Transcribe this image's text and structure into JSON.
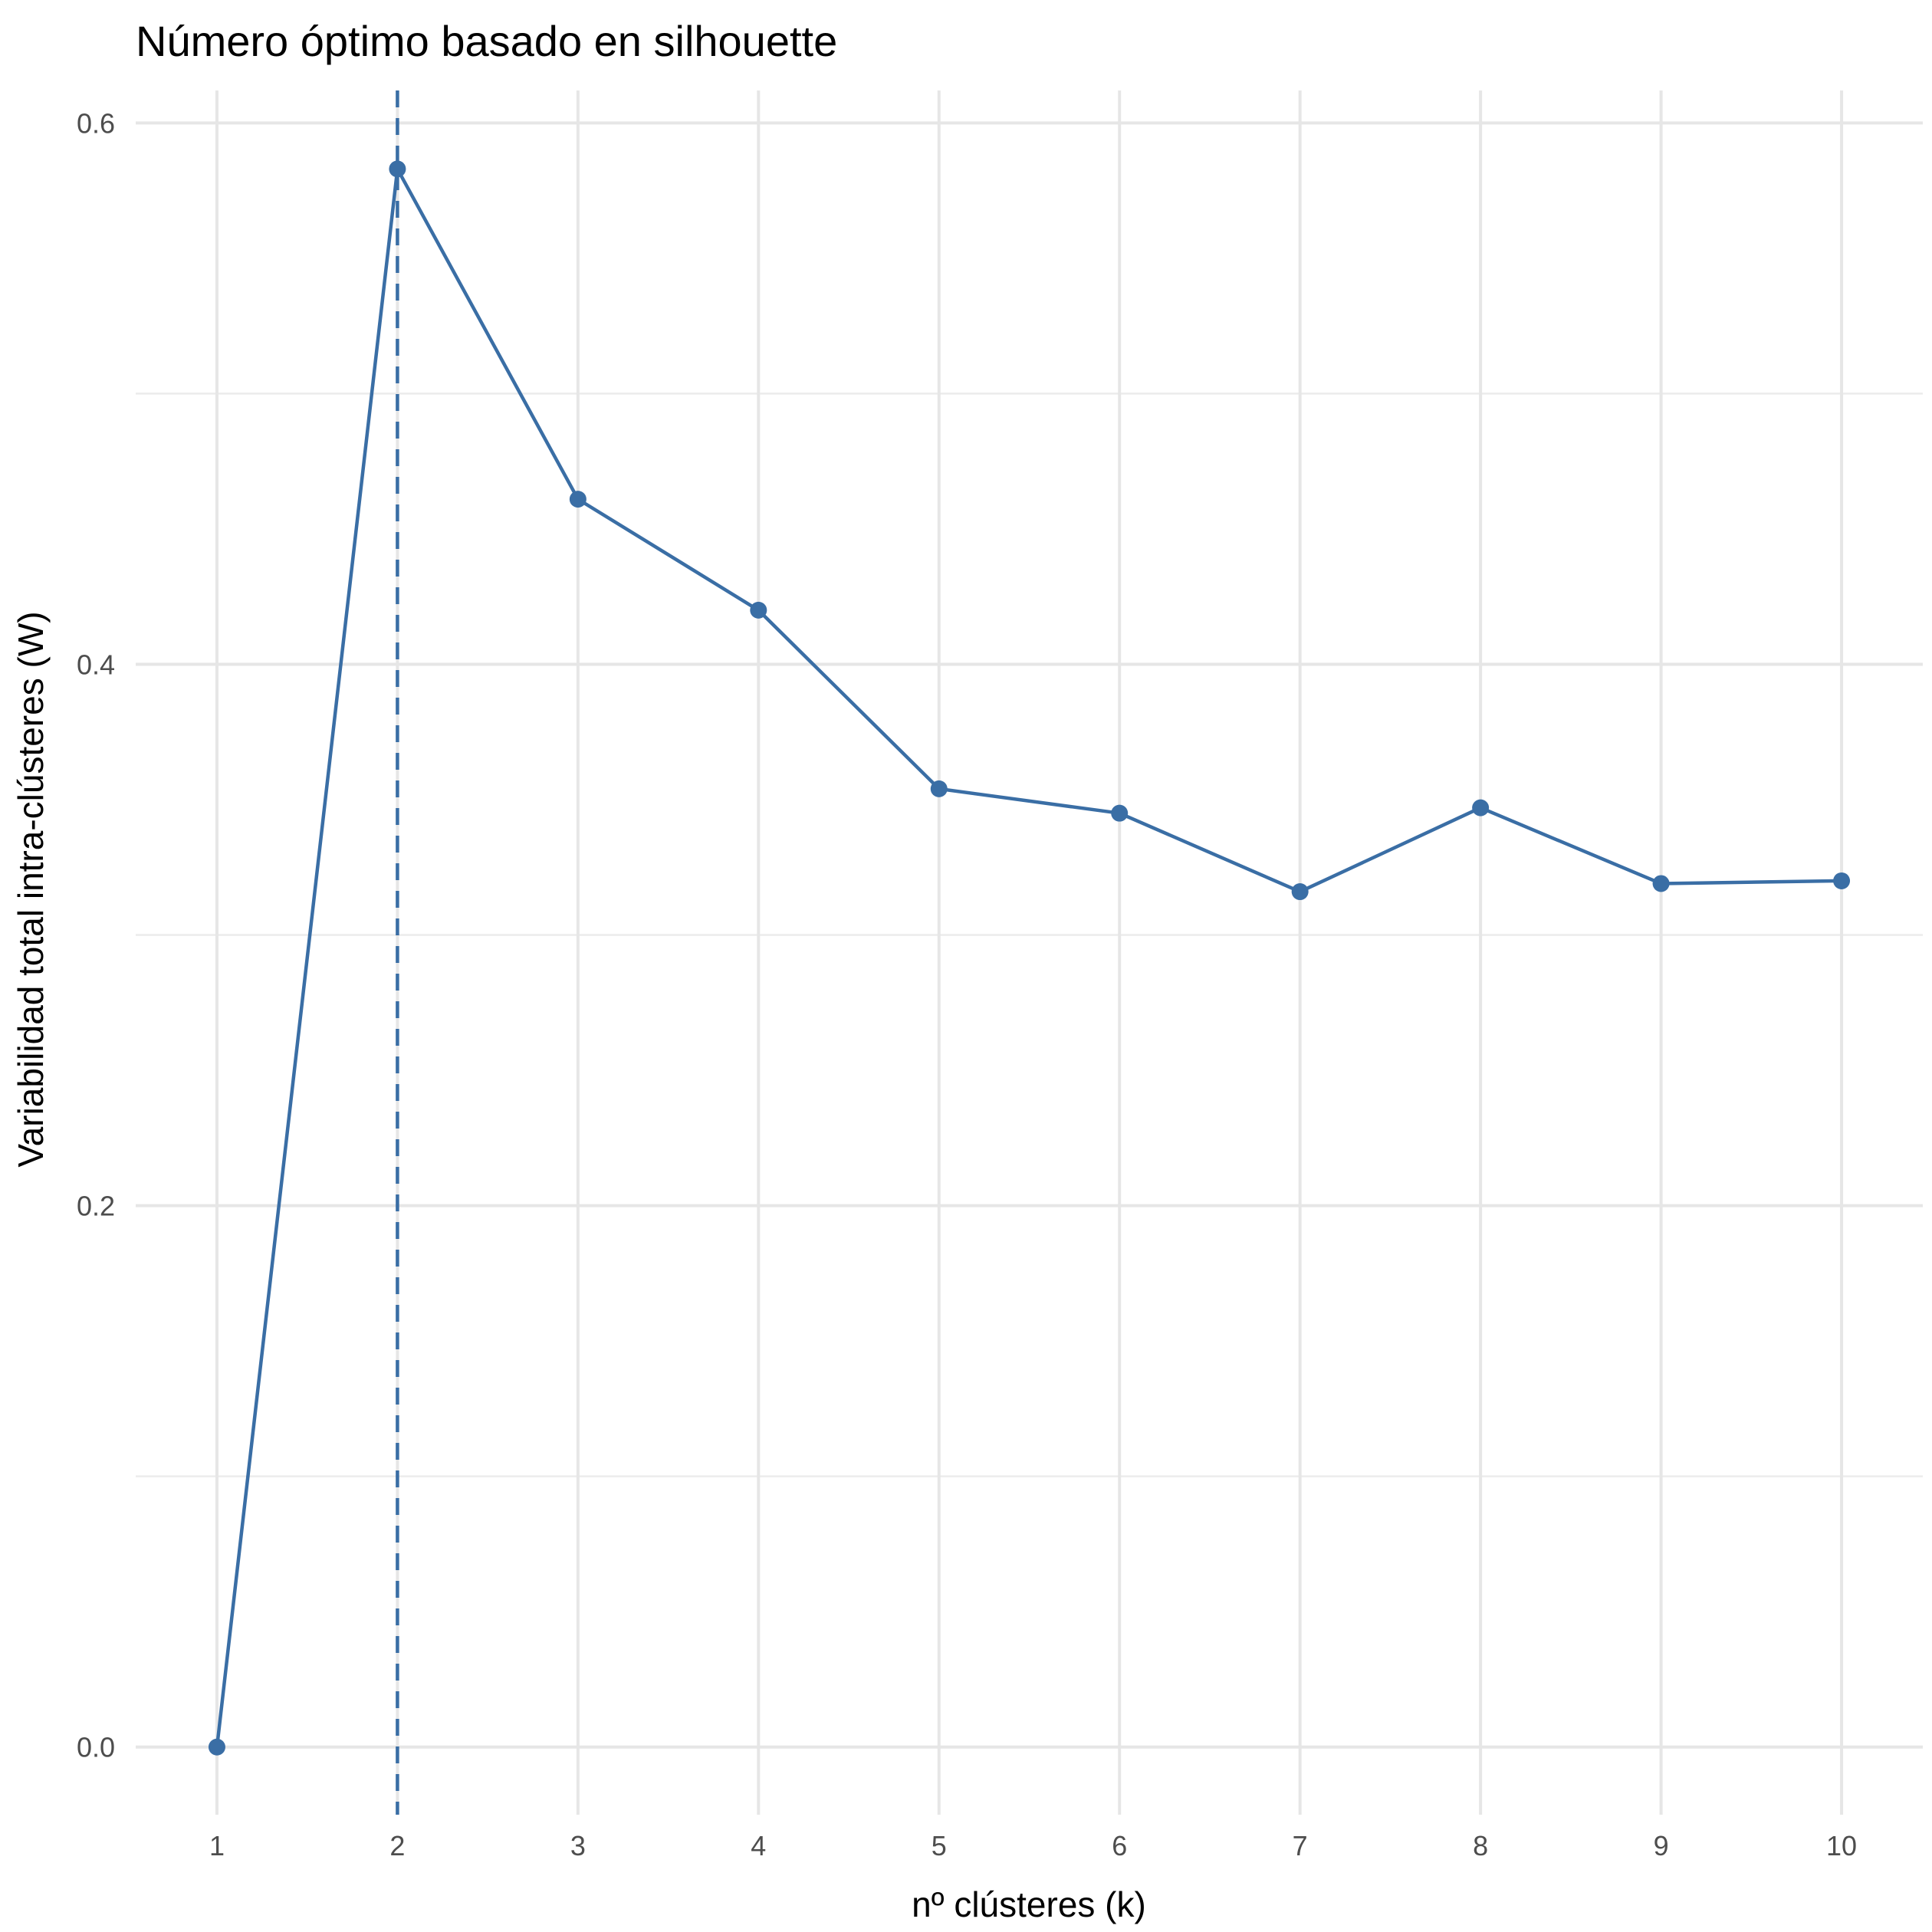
{
  "chart_data": {
    "type": "line",
    "title": "Número óptimo basado en silhouette",
    "xlabel": "nº clústeres (k)",
    "ylabel": "Variabilidad total intra-clústeres (W)",
    "x": [
      1,
      2,
      3,
      4,
      5,
      6,
      7,
      8,
      9,
      10
    ],
    "series": [
      {
        "values": [
          0.0,
          0.583,
          0.461,
          0.42,
          0.354,
          0.345,
          0.316,
          0.347,
          0.319,
          0.32
        ]
      }
    ],
    "x_ticks": [
      "1",
      "2",
      "3",
      "4",
      "5",
      "6",
      "7",
      "8",
      "9",
      "10"
    ],
    "y_ticks": [
      "0.0",
      "0.2",
      "0.4",
      "0.6"
    ],
    "xlim": [
      0.55,
      10.45
    ],
    "ylim": [
      -0.025,
      0.612
    ],
    "optimal_k": 2,
    "grid": true,
    "legend": "none",
    "line_color": "#3a6ea5",
    "vline_color": "#3a6ea5",
    "grid_color": "#e6e6e6"
  }
}
